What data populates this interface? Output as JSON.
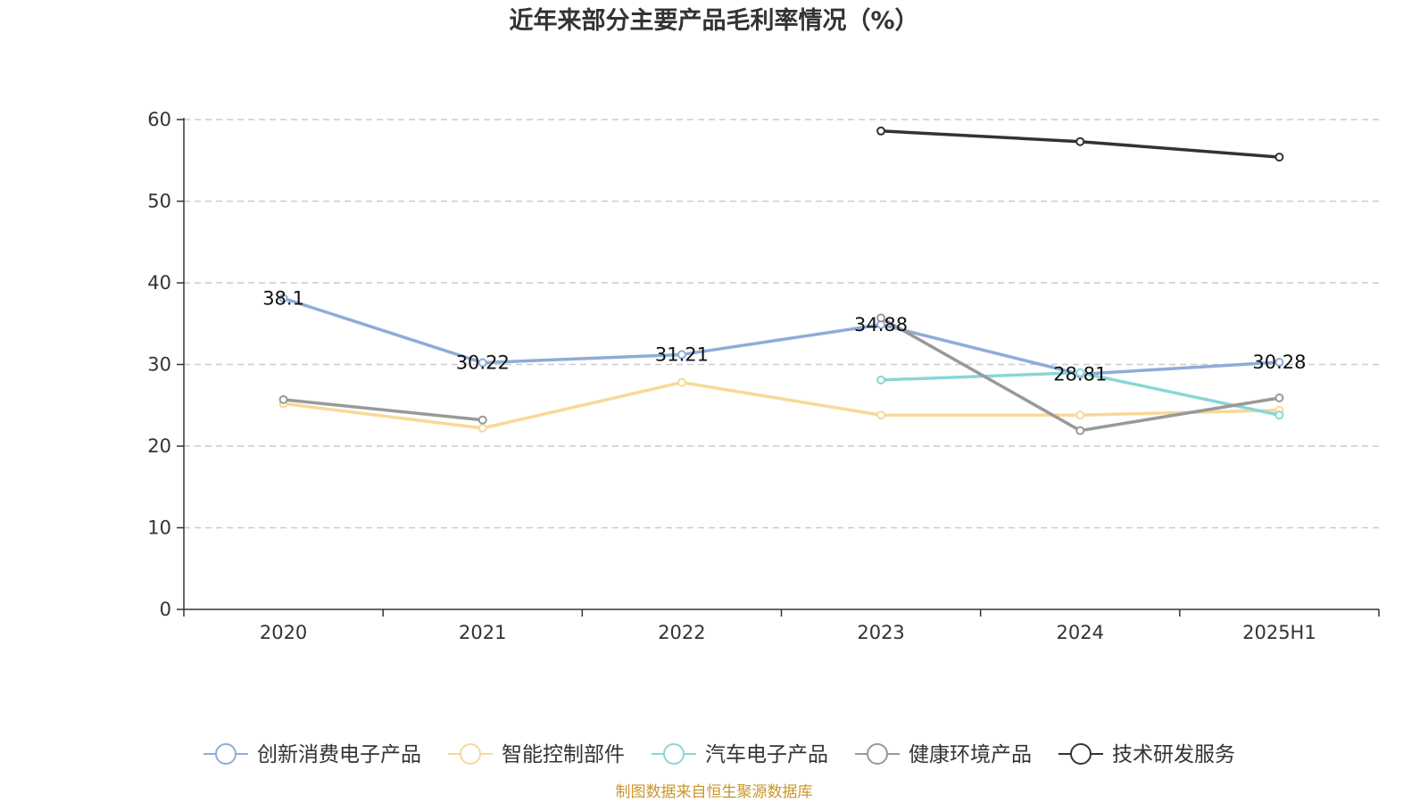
{
  "chart_data": {
    "type": "line",
    "title": "近年来部分主要产品毛利率情况（%）",
    "categories": [
      "2020",
      "2021",
      "2022",
      "2023",
      "2024",
      "2025H1"
    ],
    "yticks": [
      "0",
      "10",
      "20",
      "30",
      "40",
      "50",
      "60"
    ],
    "ylim": [
      0,
      60
    ],
    "grid": "horizontal dashed",
    "legend_position": "bottom",
    "series": [
      {
        "name": "创新消费电子产品",
        "color": "#8eacd8",
        "values": [
          38.1,
          30.22,
          31.21,
          34.88,
          28.81,
          30.28
        ],
        "labels": [
          "38.1",
          "30.22",
          "31.21",
          "34.88",
          "28.81",
          "30.28"
        ]
      },
      {
        "name": "智能控制部件",
        "color": "#f9d898",
        "values": [
          25.2,
          22.2,
          27.8,
          23.8,
          23.8,
          24.4
        ]
      },
      {
        "name": "汽车电子产品",
        "color": "#8ad6d6",
        "values": [
          null,
          null,
          null,
          28.1,
          29.0,
          23.8
        ]
      },
      {
        "name": "健康环境产品",
        "color": "#999999",
        "values": [
          25.7,
          23.2,
          null,
          35.7,
          21.9,
          25.9
        ]
      },
      {
        "name": "技术研发服务",
        "color": "#333333",
        "values": [
          null,
          null,
          null,
          58.6,
          57.3,
          55.4
        ]
      }
    ],
    "source": "制图数据来自恒生聚源数据库"
  }
}
